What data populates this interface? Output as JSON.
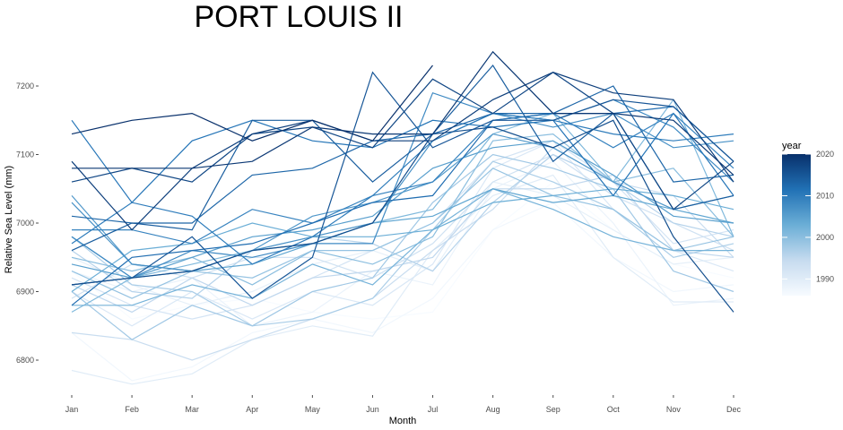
{
  "chart_data": {
    "type": "line",
    "title": "PORT LOUIS II",
    "xlabel": "Month",
    "ylabel": "Relative Sea Level (mm)",
    "categories": [
      "Jan",
      "Feb",
      "Mar",
      "Apr",
      "May",
      "Jun",
      "Jul",
      "Aug",
      "Sep",
      "Oct",
      "Nov",
      "Dec"
    ],
    "yticks": [
      6800,
      6900,
      7000,
      7100,
      7200
    ],
    "ylim": [
      6740,
      7260
    ],
    "grid": false,
    "legend": {
      "title": "year",
      "position": "right",
      "type": "continuous-colorbar",
      "range": [
        1986,
        2020
      ],
      "ticks": [
        1990,
        2000,
        2010,
        2020
      ],
      "colors": [
        "#f7fbff",
        "#c6dbef",
        "#6baed6",
        "#2171b5",
        "#08306b"
      ]
    },
    "series": [
      {
        "year": 1986,
        "values": [
          6930,
          6860,
          6880,
          6890,
          6870,
          6860,
          6870,
          6990,
          7060,
          6990,
          6940,
          6920
        ]
      },
      {
        "year": 1987,
        "values": [
          6840,
          6770,
          6790,
          6840,
          6860,
          6840,
          6890,
          6990,
          7030,
          6950,
          6900,
          6910
        ]
      },
      {
        "year": 1988,
        "values": [
          6930,
          6900,
          6920,
          6850,
          6870,
          6930,
          6910,
          7050,
          7090,
          7000,
          6880,
          6890
        ]
      },
      {
        "year": 1989,
        "values": [
          6950,
          6910,
          6880,
          6900,
          6940,
          6960,
          6930,
          7060,
          7040,
          6990,
          6940,
          6950
        ]
      },
      {
        "year": 1990,
        "values": [
          6785,
          6765,
          6780,
          6830,
          6850,
          6835,
          6960,
          7040,
          7070,
          6950,
          6885,
          6885
        ]
      },
      {
        "year": 1991,
        "values": [
          6900,
          6850,
          6900,
          6860,
          6900,
          6880,
          6940,
          7080,
          7120,
          7020,
          6960,
          6930
        ]
      },
      {
        "year": 1992,
        "values": [
          6920,
          6880,
          6860,
          6880,
          6920,
          6960,
          7000,
          7090,
          7120,
          7060,
          6970,
          6990
        ]
      },
      {
        "year": 1993,
        "values": [
          6890,
          6940,
          6920,
          6950,
          6950,
          6920,
          6970,
          7060,
          7100,
          7040,
          7000,
          6960
        ]
      },
      {
        "year": 1994,
        "values": [
          6840,
          6830,
          6800,
          6830,
          6860,
          6890,
          6960,
          7020,
          7110,
          7060,
          7040,
          6950
        ]
      },
      {
        "year": 1995,
        "values": [
          6910,
          6870,
          6920,
          6880,
          6920,
          6930,
          6950,
          7050,
          7050,
          7070,
          6960,
          6950
        ]
      },
      {
        "year": 1996,
        "values": [
          6960,
          6900,
          6890,
          6960,
          6980,
          6970,
          6930,
          7030,
          7100,
          7060,
          7000,
          6980
        ]
      },
      {
        "year": 1997,
        "values": [
          6980,
          6910,
          6900,
          6850,
          6860,
          6890,
          6990,
          7090,
          7060,
          7020,
          6950,
          6970
        ]
      },
      {
        "year": 1998,
        "values": [
          6900,
          6830,
          6880,
          6850,
          6900,
          6920,
          7030,
          7100,
          7080,
          7050,
          6930,
          6900
        ]
      },
      {
        "year": 1999,
        "values": [
          6930,
          6890,
          6930,
          6920,
          6960,
          6960,
          7000,
          7080,
          7040,
          7020,
          6960,
          6980
        ]
      },
      {
        "year": 2000,
        "values": [
          6950,
          6930,
          6950,
          6910,
          6960,
          6940,
          6980,
          7120,
          7130,
          7060,
          7080,
          6980
        ]
      },
      {
        "year": 2001,
        "values": [
          6870,
          6920,
          6940,
          6960,
          6970,
          7000,
          7020,
          7130,
          7160,
          7060,
          7180,
          6980
        ]
      },
      {
        "year": 2002,
        "values": [
          6880,
          6880,
          6910,
          6890,
          6940,
          6910,
          6990,
          7050,
          7020,
          6980,
          6960,
          6960
        ]
      },
      {
        "year": 2003,
        "values": [
          6900,
          6960,
          6970,
          7000,
          6980,
          6980,
          6990,
          7030,
          7040,
          7050,
          7040,
          7020
        ]
      },
      {
        "year": 2004,
        "values": [
          6980,
          6920,
          6930,
          6940,
          6970,
          7000,
          7010,
          7050,
          7030,
          7040,
          7020,
          7000
        ]
      },
      {
        "year": 2005,
        "values": [
          6940,
          6920,
          6950,
          6980,
          6990,
          7010,
          7080,
          7110,
          7120,
          7070,
          7010,
          7000
        ]
      },
      {
        "year": 2006,
        "values": [
          7040,
          6940,
          6930,
          6960,
          7010,
          7030,
          7060,
          7130,
          7110,
          7060,
          7020,
          7040
        ]
      },
      {
        "year": 2007,
        "values": [
          7030,
          6940,
          6930,
          6960,
          6980,
          7000,
          7120,
          7160,
          7140,
          7160,
          7110,
          7120
        ]
      },
      {
        "year": 2008,
        "values": [
          6980,
          6920,
          6960,
          6950,
          6970,
          6970,
          7190,
          7160,
          7150,
          7180,
          7140,
          7060
        ]
      },
      {
        "year": 2009,
        "values": [
          6990,
          6990,
          6970,
          7020,
          7000,
          7040,
          7060,
          7150,
          7160,
          7110,
          7160,
          7080
        ]
      },
      {
        "year": 2010,
        "values": [
          6970,
          7030,
          7010,
          6940,
          6980,
          7040,
          7120,
          7160,
          7150,
          7130,
          7120,
          7130
        ]
      },
      {
        "year": 2011,
        "values": [
          7150,
          7030,
          7120,
          7150,
          7120,
          7110,
          7150,
          7140,
          7150,
          7040,
          7160,
          7040
        ]
      },
      {
        "year": 2012,
        "values": [
          6880,
          6950,
          6960,
          6970,
          7000,
          7030,
          7040,
          7150,
          7160,
          7160,
          7170,
          7090
        ]
      },
      {
        "year": 2013,
        "values": [
          7010,
          7000,
          7000,
          7070,
          7080,
          7120,
          7130,
          7160,
          7160,
          7200,
          7060,
          7070
        ]
      },
      {
        "year": 2014,
        "values": [
          6960,
          7000,
          6990,
          7150,
          7150,
          7060,
          7130,
          7230,
          7090,
          7160,
          7020,
          7040
        ]
      },
      {
        "year": 2015,
        "values": [
          6910,
          6920,
          6980,
          6890,
          6950,
          7220,
          7110,
          7150,
          7150,
          7180,
          7170,
          7090
        ]
      },
      {
        "year": 2016,
        "values": [
          6910,
          6920,
          6930,
          6960,
          6970,
          7000,
          7130,
          7140,
          7110,
          7150,
          6980,
          6870
        ]
      },
      {
        "year": 2017,
        "values": [
          7060,
          7080,
          7060,
          7130,
          7140,
          7110,
          7210,
          7160,
          7220,
          7160,
          7020,
          7090
        ]
      },
      {
        "year": 2018,
        "values": [
          7090,
          6990,
          7080,
          7130,
          7150,
          7120,
          7120,
          7180,
          7220,
          7190,
          7180,
          7060
        ]
      },
      {
        "year": 2019,
        "values": [
          7080,
          7080,
          7080,
          7090,
          7140,
          7130,
          7130,
          7250,
          7160,
          7160,
          7150,
          7070
        ]
      },
      {
        "year": 2020,
        "values": [
          7130,
          7150,
          7160,
          7120,
          7150,
          7120,
          7230,
          null,
          null,
          null,
          null,
          null
        ]
      }
    ]
  }
}
